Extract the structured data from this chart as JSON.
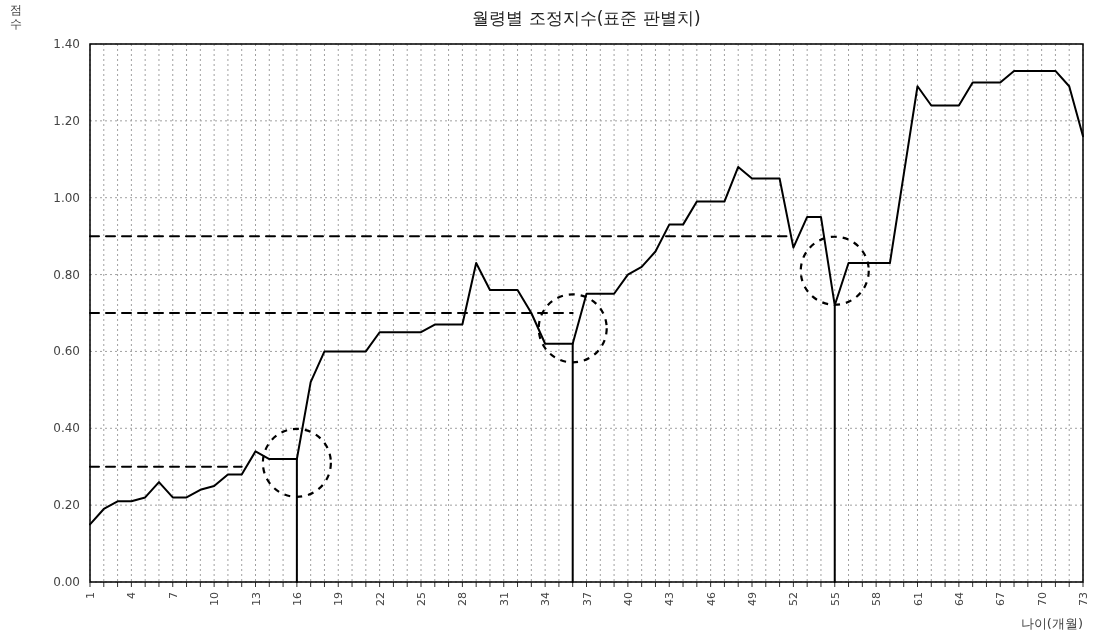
{
  "chart_data": {
    "type": "line",
    "title": "월령별 조정지수(표준 판별치)",
    "xlabel": "나이(개월)",
    "ylabel": "점수",
    "x": [
      1,
      2,
      3,
      4,
      5,
      6,
      7,
      8,
      9,
      10,
      11,
      12,
      13,
      14,
      15,
      16,
      17,
      18,
      19,
      20,
      21,
      22,
      23,
      24,
      25,
      26,
      27,
      28,
      29,
      30,
      31,
      32,
      33,
      34,
      35,
      36,
      37,
      38,
      39,
      40,
      41,
      42,
      43,
      44,
      45,
      46,
      47,
      48,
      49,
      50,
      51,
      52,
      53,
      54,
      55,
      56,
      57,
      58,
      59,
      60,
      61,
      62,
      63,
      64,
      65,
      66,
      67,
      68,
      69,
      70,
      71,
      72,
      73
    ],
    "series": [
      {
        "color": "#000000",
        "values": [
          0.15,
          0.19,
          0.21,
          0.21,
          0.22,
          0.26,
          0.22,
          0.22,
          0.24,
          0.25,
          0.28,
          0.28,
          0.34,
          0.32,
          0.32,
          0.32,
          0.52,
          0.6,
          0.6,
          0.6,
          0.6,
          0.65,
          0.65,
          0.65,
          0.65,
          0.67,
          0.67,
          0.67,
          0.83,
          0.76,
          0.76,
          0.76,
          0.7,
          0.62,
          0.62,
          0.62,
          0.75,
          0.75,
          0.75,
          0.8,
          0.82,
          0.86,
          0.93,
          0.93,
          0.99,
          0.99,
          0.99,
          1.08,
          1.05,
          1.05,
          1.05,
          0.87,
          0.95,
          0.95,
          0.72,
          0.83,
          0.83,
          0.83,
          0.83,
          1.06,
          1.29,
          1.24,
          1.24,
          1.24,
          1.3,
          1.3,
          1.3,
          1.33,
          1.33,
          1.33,
          1.33,
          1.29,
          1.16
        ]
      },
      {
        "color": "#000000",
        "line_style": "dashed",
        "x": [
          1,
          12
        ],
        "values": [
          0.3,
          0.3
        ]
      },
      {
        "color": "#000000",
        "line_style": "dashed",
        "x": [
          1,
          36
        ],
        "values": [
          0.7,
          0.7
        ]
      },
      {
        "color": "#000000",
        "line_style": "dashed",
        "x": [
          1,
          51.5
        ],
        "values": [
          0.9,
          0.9
        ]
      },
      {
        "color": "#000000",
        "x": [
          16,
          16
        ],
        "values": [
          0,
          0.32
        ]
      },
      {
        "color": "#000000",
        "x": [
          36,
          36
        ],
        "values": [
          0,
          0.62
        ]
      },
      {
        "color": "#000000",
        "x": [
          55,
          55
        ],
        "values": [
          0,
          0.72
        ]
      }
    ],
    "xlim": [
      1,
      73
    ],
    "xticks": [
      1,
      {
        "value": 2,
        "label": null
      },
      {
        "value": 3,
        "label": null
      },
      4,
      {
        "value": 5,
        "label": null
      },
      {
        "value": 6,
        "label": null
      },
      7,
      {
        "value": 8,
        "label": null
      },
      {
        "value": 9,
        "label": null
      },
      10,
      {
        "value": 11,
        "label": null
      },
      {
        "value": 12,
        "label": null
      },
      13,
      {
        "value": 14,
        "label": null
      },
      {
        "value": 15,
        "label": null
      },
      16,
      {
        "value": 17,
        "label": null
      },
      {
        "value": 18,
        "label": null
      },
      19,
      {
        "value": 20,
        "label": null
      },
      {
        "value": 21,
        "label": null
      },
      22,
      {
        "value": 23,
        "label": null
      },
      {
        "value": 24,
        "label": null
      },
      25,
      {
        "value": 26,
        "label": null
      },
      {
        "value": 27,
        "label": null
      },
      28,
      {
        "value": 29,
        "label": null
      },
      {
        "value": 30,
        "label": null
      },
      31,
      {
        "value": 32,
        "label": null
      },
      {
        "value": 33,
        "label": null
      },
      34,
      {
        "value": 35,
        "label": null
      },
      {
        "value": 36,
        "label": null
      },
      37,
      {
        "value": 38,
        "label": null
      },
      {
        "value": 39,
        "label": null
      },
      40,
      {
        "value": 41,
        "label": null
      },
      {
        "value": 42,
        "label": null
      },
      43,
      {
        "value": 44,
        "label": null
      },
      {
        "value": 45,
        "label": null
      },
      46,
      {
        "value": 47,
        "label": null
      },
      {
        "value": 48,
        "label": null
      },
      49,
      {
        "value": 50,
        "label": null
      },
      {
        "value": 51,
        "label": null
      },
      52,
      {
        "value": 53,
        "label": null
      },
      {
        "value": 54,
        "label": null
      },
      55,
      {
        "value": 56,
        "label": null
      },
      {
        "value": 57,
        "label": null
      },
      58,
      {
        "value": 59,
        "label": null
      },
      {
        "value": 60,
        "label": null
      },
      61,
      {
        "value": 62,
        "label": null
      },
      {
        "value": 63,
        "label": null
      },
      64,
      {
        "value": 65,
        "label": null
      },
      {
        "value": 66,
        "label": null
      },
      67,
      {
        "value": 68,
        "label": null
      },
      {
        "value": 69,
        "label": null
      },
      70,
      {
        "value": 71,
        "label": null
      },
      {
        "value": 72,
        "label": null
      },
      73
    ],
    "ylim": [
      0,
      1.4
    ],
    "yticks": [
      {
        "value": 0,
        "label": "0.00"
      },
      {
        "value": 0.2,
        "label": "0.20"
      },
      {
        "value": 0.4,
        "label": "0.40"
      },
      {
        "value": 0.6,
        "label": "0.60"
      },
      {
        "value": 0.8,
        "label": "0.80"
      },
      {
        "value": 1.0,
        "label": "1.00"
      },
      {
        "value": 1.2,
        "label": "1.20"
      },
      {
        "value": 1.4,
        "label": "1.40"
      }
    ],
    "grid": true,
    "line_style": "solid"
  }
}
